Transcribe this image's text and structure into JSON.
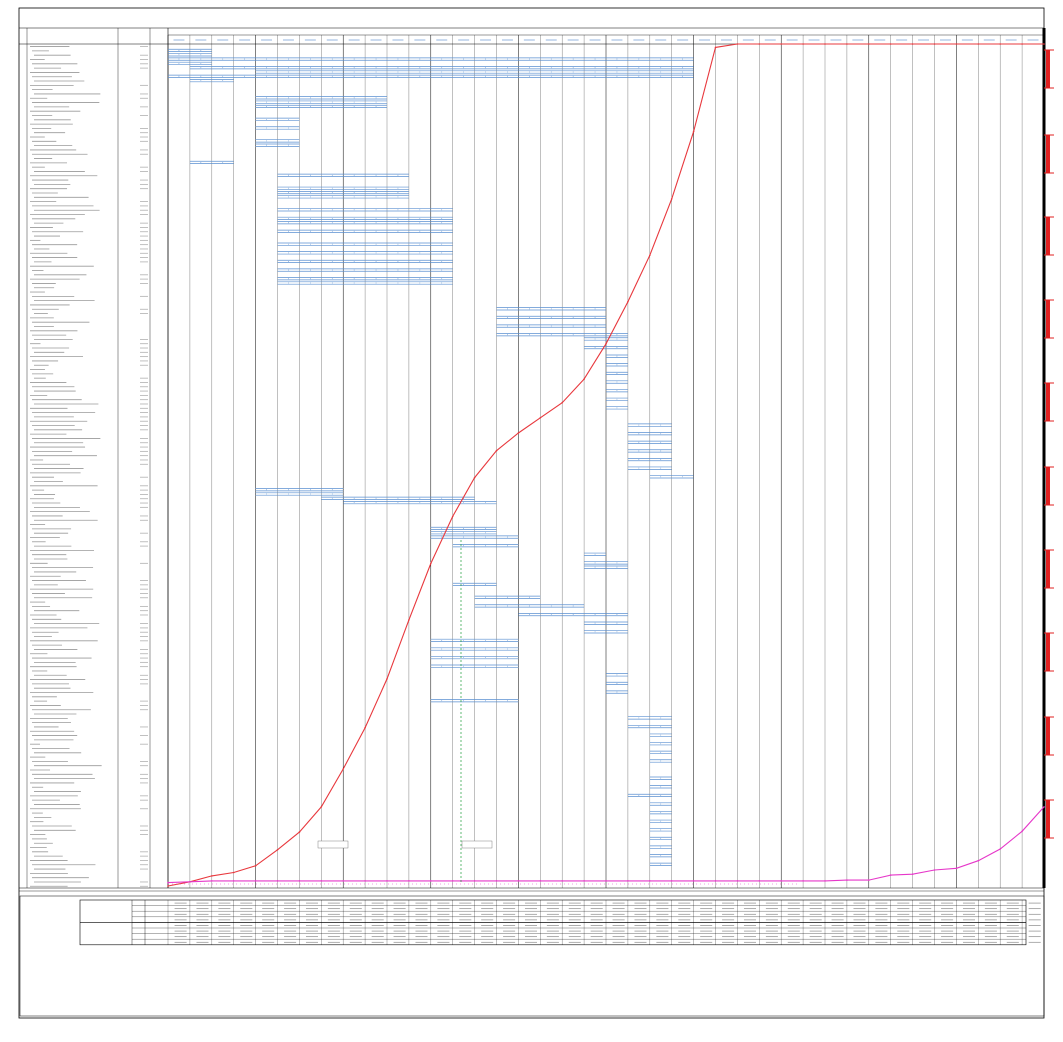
{
  "header": {
    "left_lines": [
      "",
      "",
      ""
    ],
    "title_lines": [
      "",
      ""
    ],
    "right_lines": [
      "",
      "",
      ""
    ]
  },
  "period_headers": [
    "",
    "",
    "",
    ""
  ],
  "column_headers": [],
  "task_names": [],
  "summary": {
    "row_labels": [
      "",
      ""
    ],
    "note_lines": [
      "",
      ""
    ]
  },
  "colors": {
    "plan": "#e8383d",
    "actual": "#e637c9",
    "bar": "#5a8fd0",
    "grid": "#000000",
    "header_text": "#2a5fa8",
    "marker": "#e02020",
    "today_line": "#1f9e3a"
  },
  "chart_data": {
    "type": "line",
    "title": "",
    "xlabel": "",
    "ylabel": "",
    "ylim": [
      0,
      100
    ],
    "x": [
      0,
      1,
      2,
      3,
      4,
      5,
      6,
      7,
      8,
      9,
      10,
      11,
      12,
      13,
      14,
      15,
      16,
      17,
      18,
      19,
      20,
      21,
      22,
      23,
      24,
      25,
      26,
      27,
      28,
      29,
      30,
      31,
      32,
      33,
      34,
      35,
      36,
      37,
      38,
      39,
      40
    ],
    "series": [
      {
        "name": "",
        "role": "plan",
        "x": [
          0,
          1,
          2,
          3,
          4,
          5,
          6,
          7,
          8,
          9,
          10,
          11,
          12,
          13,
          14,
          15,
          16,
          17,
          18,
          19,
          20,
          21,
          22,
          23,
          24,
          25,
          26,
          27,
          28,
          29,
          30,
          31,
          32,
          33,
          34,
          35,
          36,
          37,
          38,
          39,
          40
        ],
        "values": [
          0,
          0.5,
          1.2,
          1.6,
          2.4,
          4.3,
          6.4,
          9.4,
          13.9,
          18.8,
          24.6,
          31.6,
          38.3,
          43.9,
          48.5,
          51.7,
          53.8,
          55.6,
          57.4,
          60.2,
          64.4,
          69.4,
          74.9,
          81.6,
          89.6,
          99.6,
          100,
          100,
          100,
          100,
          100,
          100,
          100,
          100,
          100,
          100,
          100,
          100,
          100,
          100,
          100
        ]
      },
      {
        "name": "",
        "role": "actual",
        "x": [
          0,
          1,
          2,
          3,
          4,
          5,
          6,
          7,
          8,
          9,
          10,
          11,
          12,
          13,
          14,
          15,
          16,
          17,
          18,
          19,
          20,
          21,
          22,
          23,
          24,
          25,
          26,
          27,
          28,
          29,
          30,
          31,
          32,
          33,
          34,
          35,
          36,
          37,
          38,
          39,
          40
        ],
        "values": [
          0.4,
          0.5,
          0.6,
          0.6,
          0.6,
          0.6,
          0.6,
          0.6,
          0.6,
          0.6,
          0.6,
          0.6,
          0.6,
          0.6,
          0.6,
          0.6,
          0.6,
          0.6,
          0.6,
          0.6,
          0.6,
          0.6,
          0.6,
          0.6,
          0.6,
          0.6,
          0.6,
          0.6,
          0.6,
          0.6,
          0.6,
          0.7,
          0.7,
          1.3,
          1.4,
          1.9,
          2.1,
          3.0,
          4.4,
          6.5,
          9.4
        ]
      }
    ],
    "point_labels": [
      {
        "series": 0,
        "index": 1,
        "text": ""
      },
      {
        "series": 0,
        "index": 3,
        "text": ""
      },
      {
        "series": 0,
        "index": 5,
        "text": ""
      },
      {
        "series": 0,
        "index": 6,
        "text": ""
      },
      {
        "series": 0,
        "index": 7,
        "text": ""
      },
      {
        "series": 0,
        "index": 8,
        "text": ""
      },
      {
        "series": 0,
        "index": 9,
        "text": ""
      },
      {
        "series": 0,
        "index": 10,
        "text": ""
      },
      {
        "series": 0,
        "index": 11,
        "text": ""
      },
      {
        "series": 0,
        "index": 12,
        "text": ""
      },
      {
        "series": 0,
        "index": 13,
        "text": ""
      },
      {
        "series": 0,
        "index": 14,
        "text": ""
      },
      {
        "series": 0,
        "index": 15,
        "text": ""
      },
      {
        "series": 0,
        "index": 16,
        "text": ""
      },
      {
        "series": 0,
        "index": 17,
        "text": ""
      },
      {
        "series": 0,
        "index": 18,
        "text": ""
      },
      {
        "series": 0,
        "index": 19,
        "text": ""
      },
      {
        "series": 0,
        "index": 20,
        "text": ""
      },
      {
        "series": 0,
        "index": 21,
        "text": ""
      },
      {
        "series": 0,
        "index": 22,
        "text": ""
      },
      {
        "series": 0,
        "index": 23,
        "text": ""
      },
      {
        "series": 0,
        "index": 24,
        "text": ""
      },
      {
        "series": 0,
        "index": 25,
        "text": ""
      },
      {
        "series": 1,
        "index": 34,
        "text": ""
      },
      {
        "series": 1,
        "index": 36,
        "text": ""
      },
      {
        "series": 1,
        "index": 38,
        "text": ""
      },
      {
        "series": 1,
        "index": 39,
        "text": ""
      },
      {
        "series": 1,
        "index": 40,
        "text": ""
      }
    ],
    "final_value_label": ""
  }
}
